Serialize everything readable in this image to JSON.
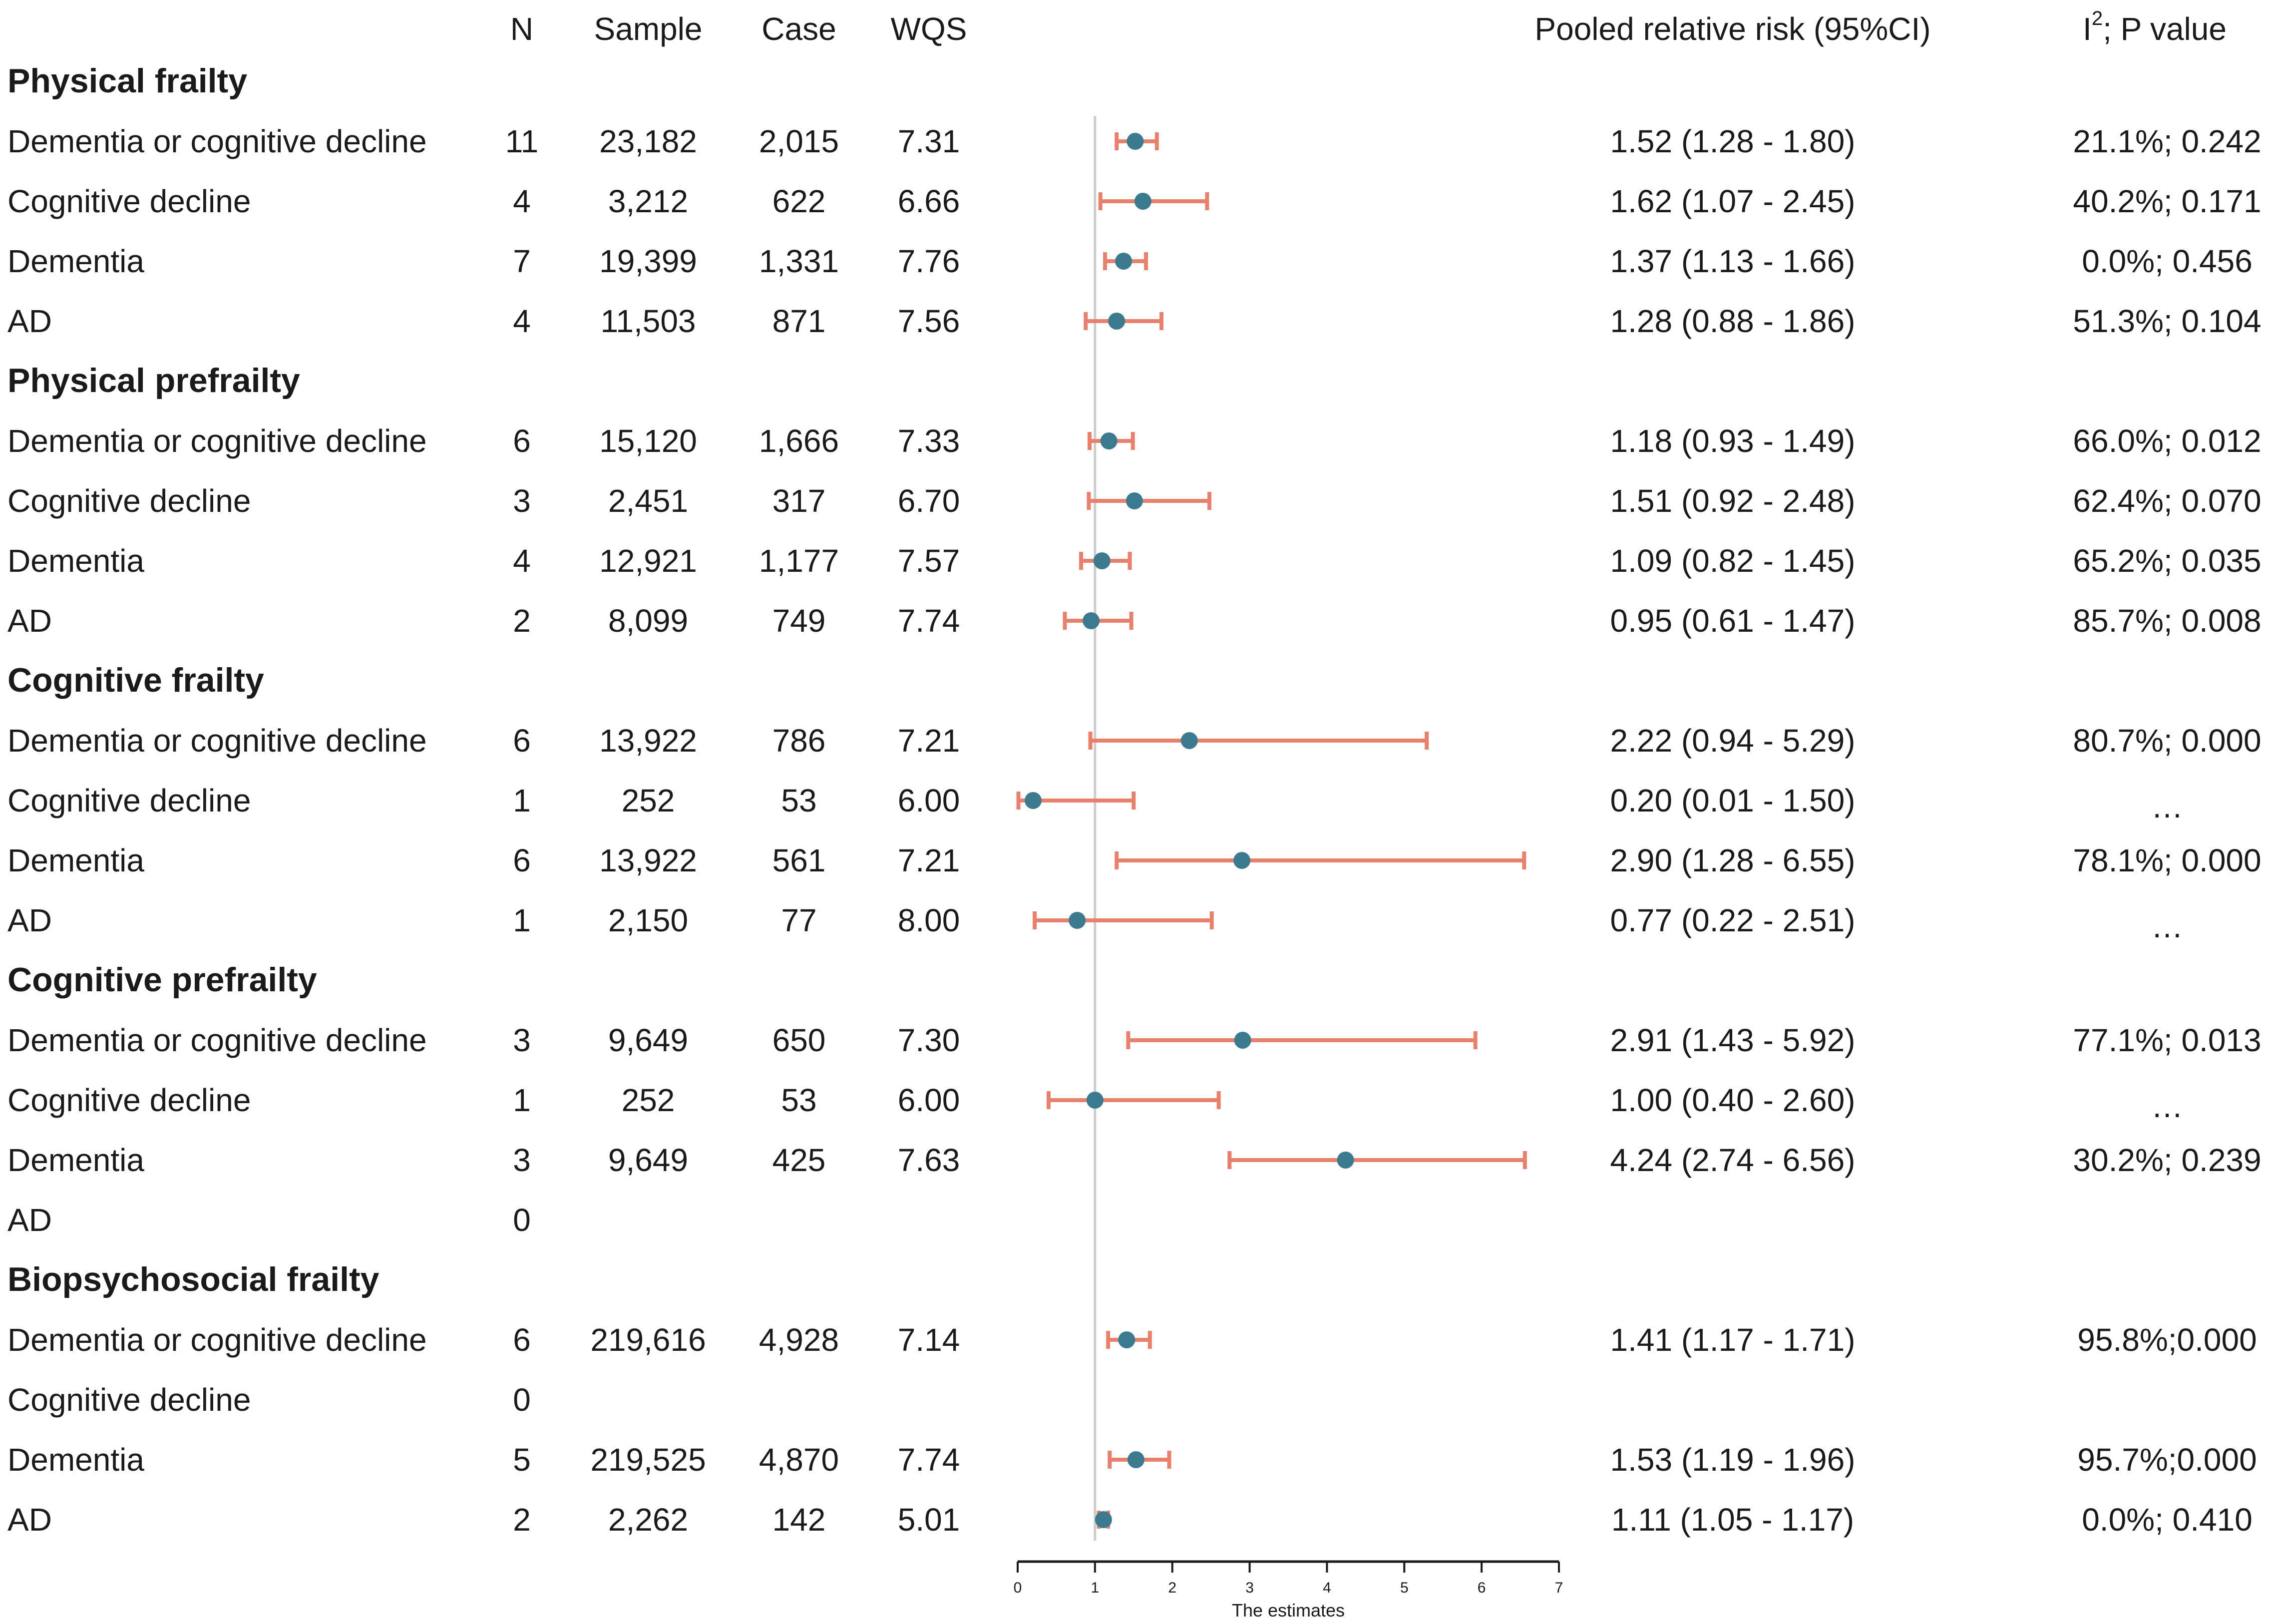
{
  "chart_data": {
    "type": "forest",
    "headers": {
      "n": "N",
      "sample": "Sample",
      "case": "Case",
      "wqs": "WQS",
      "rr": "Pooled relative risk (95%CI)",
      "i2_base": "I",
      "i2_sup": "2",
      "i2_rest": "; P value"
    },
    "reference_line": 1,
    "x_axis": {
      "label": "The estimates",
      "min": 0,
      "max": 7,
      "ticks": [
        "0",
        "1",
        "2",
        "3",
        "4",
        "5",
        "6",
        "7"
      ]
    },
    "colors": {
      "ci_line": "#e8806e",
      "point": "#3c7a8f",
      "ref_line": "#cccccc",
      "axis": "#1a1a1a"
    },
    "groups": [
      {
        "name": "Physical frailty",
        "rows": [
          {
            "label": "Dementia or cognitive  decline",
            "n": "11",
            "sample": "23,182",
            "case": "2,015",
            "wqs": "7.31",
            "est": 1.52,
            "lo": 1.28,
            "hi": 1.8,
            "rr": "1.52 (1.28 - 1.80)",
            "i2p": "21.1%; 0.242"
          },
          {
            "label": "Cognitive  decline",
            "n": "4",
            "sample": "3,212",
            "case": "622",
            "wqs": "6.66",
            "est": 1.62,
            "lo": 1.07,
            "hi": 2.45,
            "rr": "1.62 (1.07 - 2.45)",
            "i2p": "40.2%; 0.171"
          },
          {
            "label": "Dementia",
            "n": "7",
            "sample": "19,399",
            "case": "1,331",
            "wqs": "7.76",
            "est": 1.37,
            "lo": 1.13,
            "hi": 1.66,
            "rr": "1.37 (1.13 - 1.66)",
            "i2p": "0.0%; 0.456"
          },
          {
            "label": "AD",
            "n": "4",
            "sample": "11,503",
            "case": "871",
            "wqs": "7.56",
            "est": 1.28,
            "lo": 0.88,
            "hi": 1.86,
            "rr": "1.28 (0.88 - 1.86)",
            "i2p": "51.3%; 0.104"
          }
        ]
      },
      {
        "name": "Physical prefrailty",
        "rows": [
          {
            "label": "Dementia or cognitive decline",
            "n": "6",
            "sample": "15,120",
            "case": "1,666",
            "wqs": "7.33",
            "est": 1.18,
            "lo": 0.93,
            "hi": 1.49,
            "rr": "1.18 (0.93 - 1.49)",
            "i2p": "66.0%; 0.012"
          },
          {
            "label": "Cognitive  decline",
            "n": "3",
            "sample": "2,451",
            "case": "317",
            "wqs": "6.70",
            "est": 1.51,
            "lo": 0.92,
            "hi": 2.48,
            "rr": "1.51 (0.92 - 2.48)",
            "i2p": "62.4%; 0.070"
          },
          {
            "label": "Dementia",
            "n": "4",
            "sample": "12,921",
            "case": "1,177",
            "wqs": "7.57",
            "est": 1.09,
            "lo": 0.82,
            "hi": 1.45,
            "rr": "1.09 (0.82 - 1.45)",
            "i2p": "65.2%; 0.035"
          },
          {
            "label": "AD",
            "n": "2",
            "sample": "8,099",
            "case": "749",
            "wqs": "7.74",
            "est": 0.95,
            "lo": 0.61,
            "hi": 1.47,
            "rr": "0.95 (0.61 - 1.47)",
            "i2p": "85.7%; 0.008"
          }
        ]
      },
      {
        "name": "Cognitive  frailty",
        "rows": [
          {
            "label": "Dementia or cognitive decline",
            "n": "6",
            "sample": "13,922",
            "case": "786",
            "wqs": "7.21",
            "est": 2.22,
            "lo": 0.94,
            "hi": 5.29,
            "rr": "2.22 (0.94 - 5.29)",
            "i2p": "80.7%; 0.000"
          },
          {
            "label": "Cognitive  decline",
            "n": "1",
            "sample": "252",
            "case": "53",
            "wqs": "6.00",
            "est": 0.2,
            "lo": 0.01,
            "hi": 1.5,
            "rr": "0.20 (0.01 - 1.50)",
            "i2p": "…"
          },
          {
            "label": "Dementia",
            "n": "6",
            "sample": "13,922",
            "case": "561",
            "wqs": "7.21",
            "est": 2.9,
            "lo": 1.28,
            "hi": 6.55,
            "rr": "2.90 (1.28 - 6.55)",
            "i2p": "78.1%; 0.000"
          },
          {
            "label": "AD",
            "n": "1",
            "sample": "2,150",
            "case": "77",
            "wqs": "8.00",
            "est": 0.77,
            "lo": 0.22,
            "hi": 2.51,
            "rr": "0.77 (0.22 - 2.51)",
            "i2p": "…"
          }
        ]
      },
      {
        "name": "Cognitive  prefrailty",
        "rows": [
          {
            "label": "Dementia or cognitive decline",
            "n": "3",
            "sample": "9,649",
            "case": "650",
            "wqs": "7.30",
            "est": 2.91,
            "lo": 1.43,
            "hi": 5.92,
            "rr": "2.91 (1.43 - 5.92)",
            "i2p": "77.1%; 0.013"
          },
          {
            "label": "Cognitive  decline",
            "n": "1",
            "sample": "252",
            "case": "53",
            "wqs": "6.00",
            "est": 1.0,
            "lo": 0.4,
            "hi": 2.6,
            "rr": "1.00 (0.40 - 2.60)",
            "i2p": "…"
          },
          {
            "label": "Dementia",
            "n": "3",
            "sample": "9,649",
            "case": "425",
            "wqs": "7.63",
            "est": 4.24,
            "lo": 2.74,
            "hi": 6.56,
            "rr": "4.24 (2.74 - 6.56)",
            "i2p": "30.2%; 0.239"
          },
          {
            "label": "AD",
            "n": "0",
            "sample": "",
            "case": "",
            "wqs": "",
            "est": null,
            "lo": null,
            "hi": null,
            "rr": "",
            "i2p": ""
          }
        ]
      },
      {
        "name": "Biopsychosocial frailty",
        "rows": [
          {
            "label": "Dementia or cognitive decline",
            "n": "6",
            "sample": "219,616",
            "case": "4,928",
            "wqs": "7.14",
            "est": 1.41,
            "lo": 1.17,
            "hi": 1.71,
            "rr": "1.41 (1.17 - 1.71)",
            "i2p": "95.8%;0.000"
          },
          {
            "label": "Cognitive  decline",
            "n": "0",
            "sample": "",
            "case": "",
            "wqs": "",
            "est": null,
            "lo": null,
            "hi": null,
            "rr": "",
            "i2p": ""
          },
          {
            "label": "Dementia",
            "n": "5",
            "sample": "219,525",
            "case": "4,870",
            "wqs": "7.74",
            "est": 1.53,
            "lo": 1.19,
            "hi": 1.96,
            "rr": "1.53 (1.19 - 1.96)",
            "i2p": "95.7%;0.000"
          },
          {
            "label": "AD",
            "n": "2",
            "sample": "2,262",
            "case": "142",
            "wqs": "5.01",
            "est": 1.11,
            "lo": 1.05,
            "hi": 1.17,
            "rr": "1.11 (1.05 - 1.17)",
            "i2p": "0.0%; 0.410"
          }
        ]
      }
    ]
  }
}
